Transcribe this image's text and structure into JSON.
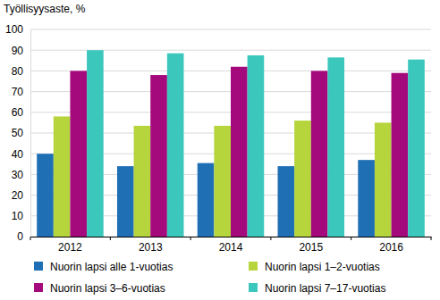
{
  "chart_data": {
    "type": "bar",
    "ylabel": "Työllisyysaste, %",
    "categories": [
      "2012",
      "2013",
      "2014",
      "2015",
      "2016"
    ],
    "series": [
      {
        "name": "Nuorin lapsi alle 1-vuotias",
        "color": "#1f6fb5",
        "values": [
          40,
          34,
          35.5,
          34,
          37
        ]
      },
      {
        "name": "Nuorin lapsi 1–2-vuotias",
        "color": "#b6d43c",
        "values": [
          58,
          53.5,
          53.5,
          56,
          55
        ]
      },
      {
        "name": "Nuorin lapsi 3–6-vuotias",
        "color": "#a50a7d",
        "values": [
          80,
          78,
          82,
          80,
          79
        ]
      },
      {
        "name": "Nuorin lapsi 7–17-vuotias",
        "color": "#3cc7bd",
        "values": [
          90,
          88.5,
          87.5,
          86.5,
          85.5
        ]
      }
    ],
    "ylim": [
      0,
      100
    ],
    "yticks": [
      0,
      10,
      20,
      30,
      40,
      50,
      60,
      70,
      80,
      90,
      100
    ],
    "grid": true,
    "legend": "bottom"
  }
}
